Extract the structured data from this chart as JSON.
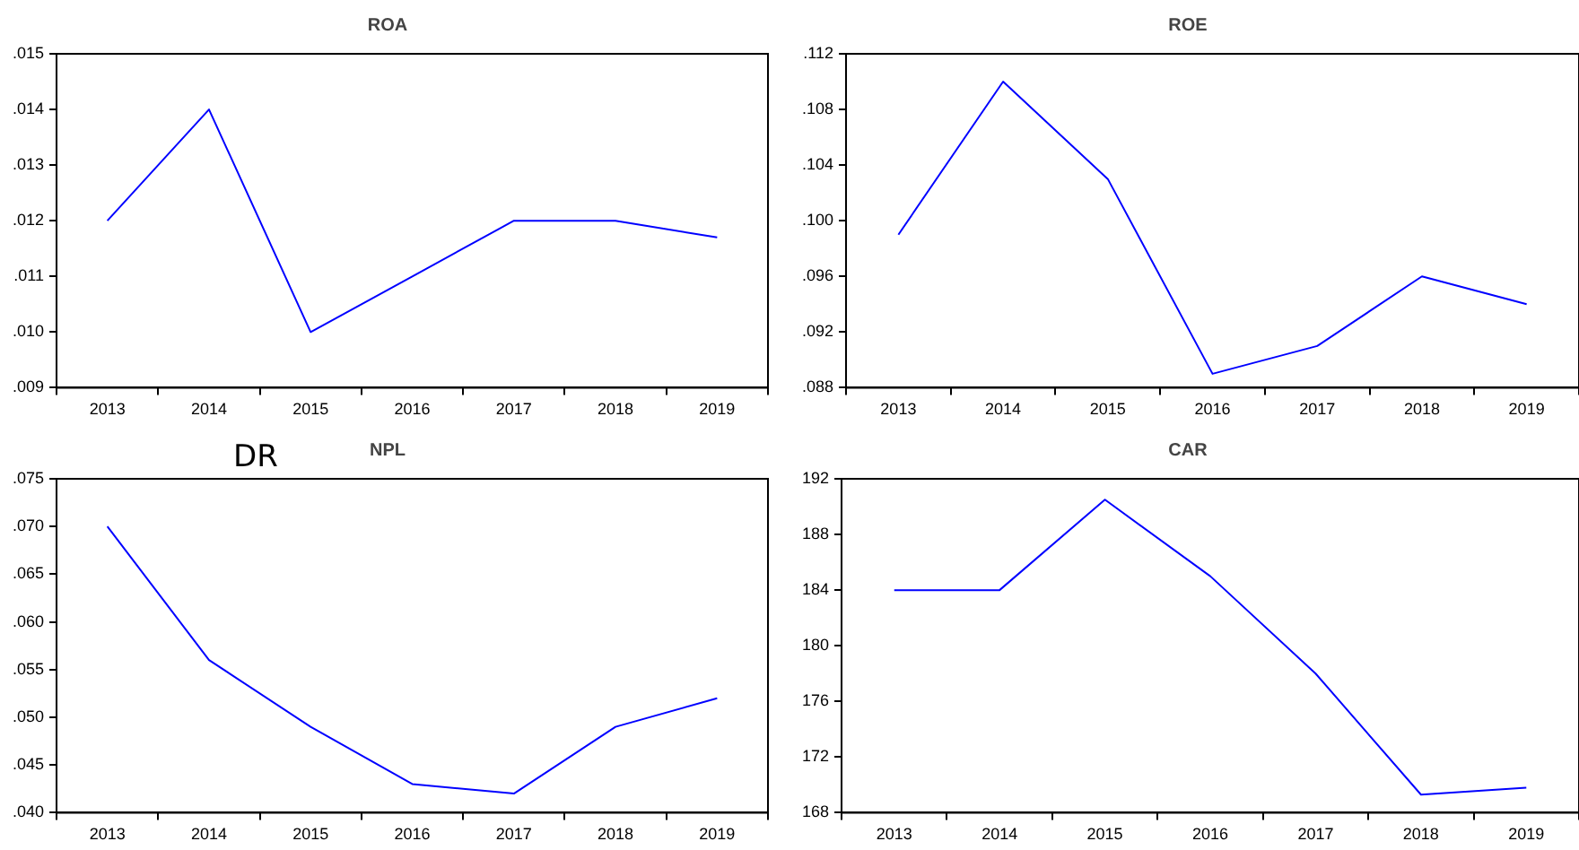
{
  "chart_data": [
    {
      "type": "line",
      "title": "ROA",
      "categories": [
        "2013",
        "2014",
        "2015",
        "2016",
        "2017",
        "2018",
        "2019"
      ],
      "series": [
        {
          "color": "#0000ff",
          "values": [
            0.012,
            0.014,
            0.01,
            0.011,
            0.012,
            0.012,
            0.0117
          ]
        }
      ],
      "ylim": [
        0.009,
        0.015
      ],
      "yticks": [
        {
          "value": 0.009,
          "label": ".009"
        },
        {
          "value": 0.01,
          "label": ".010"
        },
        {
          "value": 0.011,
          "label": ".011"
        },
        {
          "value": 0.012,
          "label": ".012"
        },
        {
          "value": 0.013,
          "label": ".013"
        },
        {
          "value": 0.014,
          "label": ".014"
        },
        {
          "value": 0.015,
          "label": ".015"
        }
      ],
      "grid": false,
      "legend": false,
      "marker": "none"
    },
    {
      "type": "line",
      "title": "ROE",
      "categories": [
        "2013",
        "2014",
        "2015",
        "2016",
        "2017",
        "2018",
        "2019"
      ],
      "series": [
        {
          "color": "#0000ff",
          "values": [
            0.099,
            0.11,
            0.103,
            0.089,
            0.091,
            0.096,
            0.094
          ]
        }
      ],
      "ylim": [
        0.088,
        0.112
      ],
      "yticks": [
        {
          "value": 0.088,
          "label": ".088"
        },
        {
          "value": 0.092,
          "label": ".092"
        },
        {
          "value": 0.096,
          "label": ".096"
        },
        {
          "value": 0.1,
          "label": ".100"
        },
        {
          "value": 0.104,
          "label": ".104"
        },
        {
          "value": 0.108,
          "label": ".108"
        },
        {
          "value": 0.112,
          "label": ".112"
        }
      ],
      "grid": false,
      "legend": false,
      "marker": "none"
    },
    {
      "type": "line",
      "title": "NPL",
      "annotations": [
        "DR"
      ],
      "categories": [
        "2013",
        "2014",
        "2015",
        "2016",
        "2017",
        "2018",
        "2019"
      ],
      "series": [
        {
          "color": "#0000ff",
          "values": [
            0.07,
            0.056,
            0.049,
            0.043,
            0.042,
            0.049,
            0.052
          ]
        }
      ],
      "ylim": [
        0.04,
        0.075
      ],
      "yticks": [
        {
          "value": 0.04,
          "label": ".040"
        },
        {
          "value": 0.045,
          "label": ".045"
        },
        {
          "value": 0.05,
          "label": ".050"
        },
        {
          "value": 0.055,
          "label": ".055"
        },
        {
          "value": 0.06,
          "label": ".060"
        },
        {
          "value": 0.065,
          "label": ".065"
        },
        {
          "value": 0.07,
          "label": ".070"
        },
        {
          "value": 0.075,
          "label": ".075"
        }
      ],
      "grid": false,
      "legend": false,
      "marker": "none"
    },
    {
      "type": "line",
      "title": "CAR",
      "categories": [
        "2013",
        "2014",
        "2015",
        "2016",
        "2017",
        "2018",
        "2019"
      ],
      "series": [
        {
          "color": "#0000ff",
          "values": [
            184,
            184,
            190.5,
            185,
            178,
            169.3,
            169.8
          ]
        }
      ],
      "ylim": [
        168,
        192
      ],
      "yticks": [
        168,
        172,
        176,
        180,
        184,
        188,
        192
      ],
      "grid": false,
      "legend": false,
      "marker": "none"
    }
  ]
}
